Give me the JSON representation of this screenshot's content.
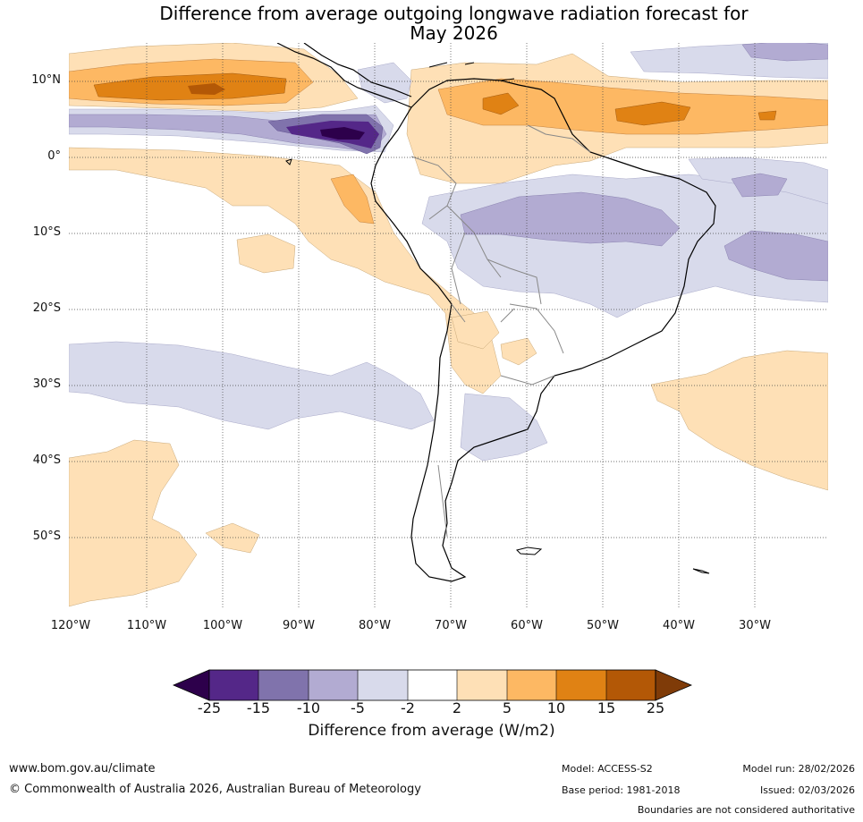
{
  "title": {
    "line1": "Difference from average outgoing longwave radiation forecast for",
    "line2": "May 2026"
  },
  "map": {
    "lat_labels": [
      "10°N",
      "0°",
      "10°S",
      "20°S",
      "30°S",
      "40°S",
      "50°S"
    ],
    "lon_labels": [
      "120°W",
      "110°W",
      "100°W",
      "90°W",
      "80°W",
      "70°W",
      "60°W",
      "50°W",
      "40°W",
      "30°W"
    ],
    "extent": {
      "lon_min": -120,
      "lon_max": -20,
      "lat_min": -60,
      "lat_max": 15
    }
  },
  "colorbar": {
    "ticks": [
      "-25",
      "-15",
      "-10",
      "-5",
      "-2",
      "2",
      "5",
      "10",
      "15",
      "25"
    ],
    "colors": [
      "#2d004b",
      "#542788",
      "#8073ac",
      "#b2abd2",
      "#d8daeb",
      "#ffffff",
      "#fee0b6",
      "#fdb863",
      "#e08214",
      "#b35806",
      "#7f3b08"
    ],
    "title": "Difference from average (W/m2)"
  },
  "footer": {
    "url": "www.bom.gov.au/climate",
    "copyright": "© Commonwealth of Australia 2026, Australian Bureau of Meteorology",
    "model": "Model: ACCESS-S2",
    "base_period": "Base period: 1981-2018",
    "model_run": "Model run: 28/02/2026",
    "issued": "Issued: 02/03/2026",
    "disclaimer": "Boundaries are not considered authoritative"
  }
}
